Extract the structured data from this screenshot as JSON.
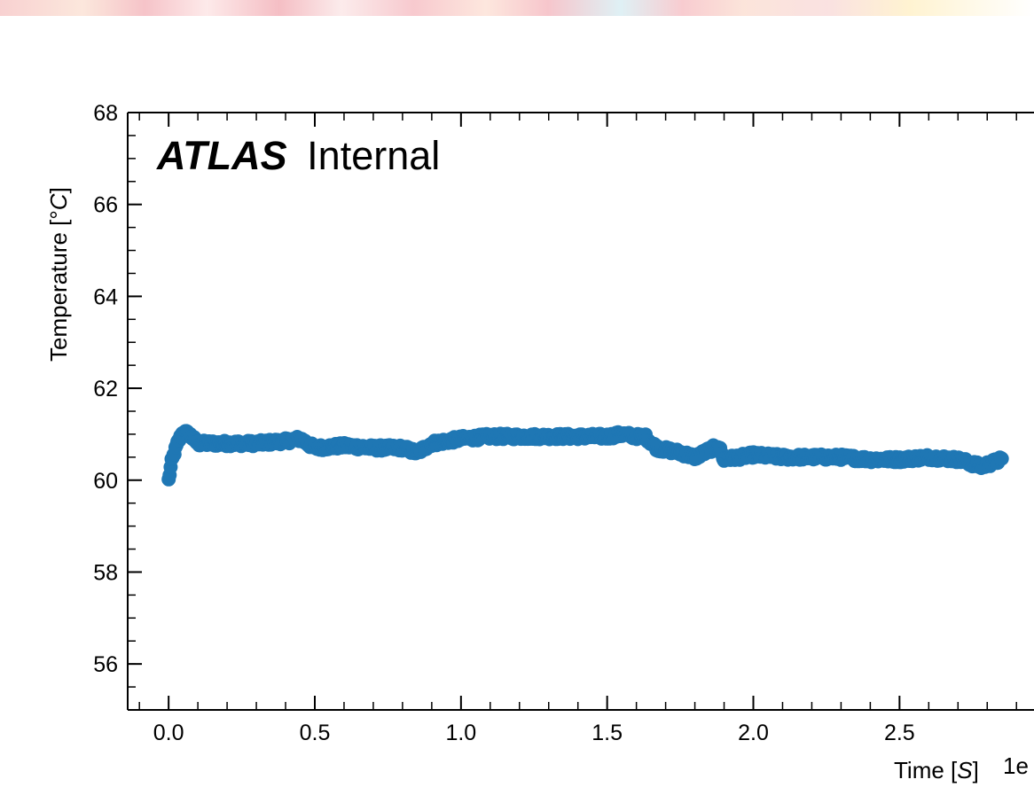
{
  "chart_data": {
    "type": "scatter",
    "watermark": {
      "bold": "ATLAS",
      "normal": "Internal"
    },
    "xlabel": "Time [S]",
    "xlabel_parts": {
      "main": "Time ",
      "open": "[",
      "unit": "S",
      "close": "]"
    },
    "x_offset_label": "1e",
    "ylabel": "Temperature [°C]",
    "ylabel_parts": {
      "main": "Temperature [°",
      "unit": "C",
      "close": "]"
    },
    "xlim": [
      -0.14,
      2.96
    ],
    "ylim": [
      55,
      68
    ],
    "x_ticks": [
      {
        "value": 0.0,
        "label": "0.0"
      },
      {
        "value": 0.5,
        "label": "0.5"
      },
      {
        "value": 1.0,
        "label": "1.0"
      },
      {
        "value": 1.5,
        "label": "1.5"
      },
      {
        "value": 2.0,
        "label": "2.0"
      },
      {
        "value": 2.5,
        "label": "2.5"
      }
    ],
    "y_ticks": [
      {
        "value": 56,
        "label": "56"
      },
      {
        "value": 58,
        "label": "58"
      },
      {
        "value": 60,
        "label": "60"
      },
      {
        "value": 62,
        "label": "62"
      },
      {
        "value": 64,
        "label": "64"
      },
      {
        "value": 66,
        "label": "66"
      },
      {
        "value": 68,
        "label": "68"
      }
    ],
    "x_minor_step": 0.1,
    "y_minor_step": 0.5,
    "grid": false,
    "series": [
      {
        "color": "#1f77b4",
        "profile_x": [
          0.0,
          0.01,
          0.03,
          0.05,
          0.07,
          0.1,
          0.2,
          0.3,
          0.4,
          0.45,
          0.5,
          0.6,
          0.7,
          0.8,
          0.85,
          0.9,
          1.0,
          1.1,
          1.2,
          1.3,
          1.4,
          1.5,
          1.55,
          1.6,
          1.63,
          1.67,
          1.75,
          1.8,
          1.88,
          1.9,
          2.0,
          2.1,
          2.2,
          2.3,
          2.4,
          2.5,
          2.6,
          2.7,
          2.78,
          2.85
        ],
        "profile_y": [
          60.0,
          60.4,
          60.8,
          61.05,
          61.0,
          60.8,
          60.8,
          60.8,
          60.85,
          60.9,
          60.7,
          60.75,
          60.7,
          60.7,
          60.6,
          60.8,
          60.9,
          60.95,
          60.95,
          60.95,
          60.95,
          60.95,
          61.0,
          60.95,
          60.95,
          60.7,
          60.6,
          60.5,
          60.75,
          60.45,
          60.55,
          60.5,
          60.5,
          60.5,
          60.45,
          60.45,
          60.5,
          60.45,
          60.3,
          60.45
        ],
        "n_points": 850,
        "noise": 0.06
      }
    ]
  }
}
